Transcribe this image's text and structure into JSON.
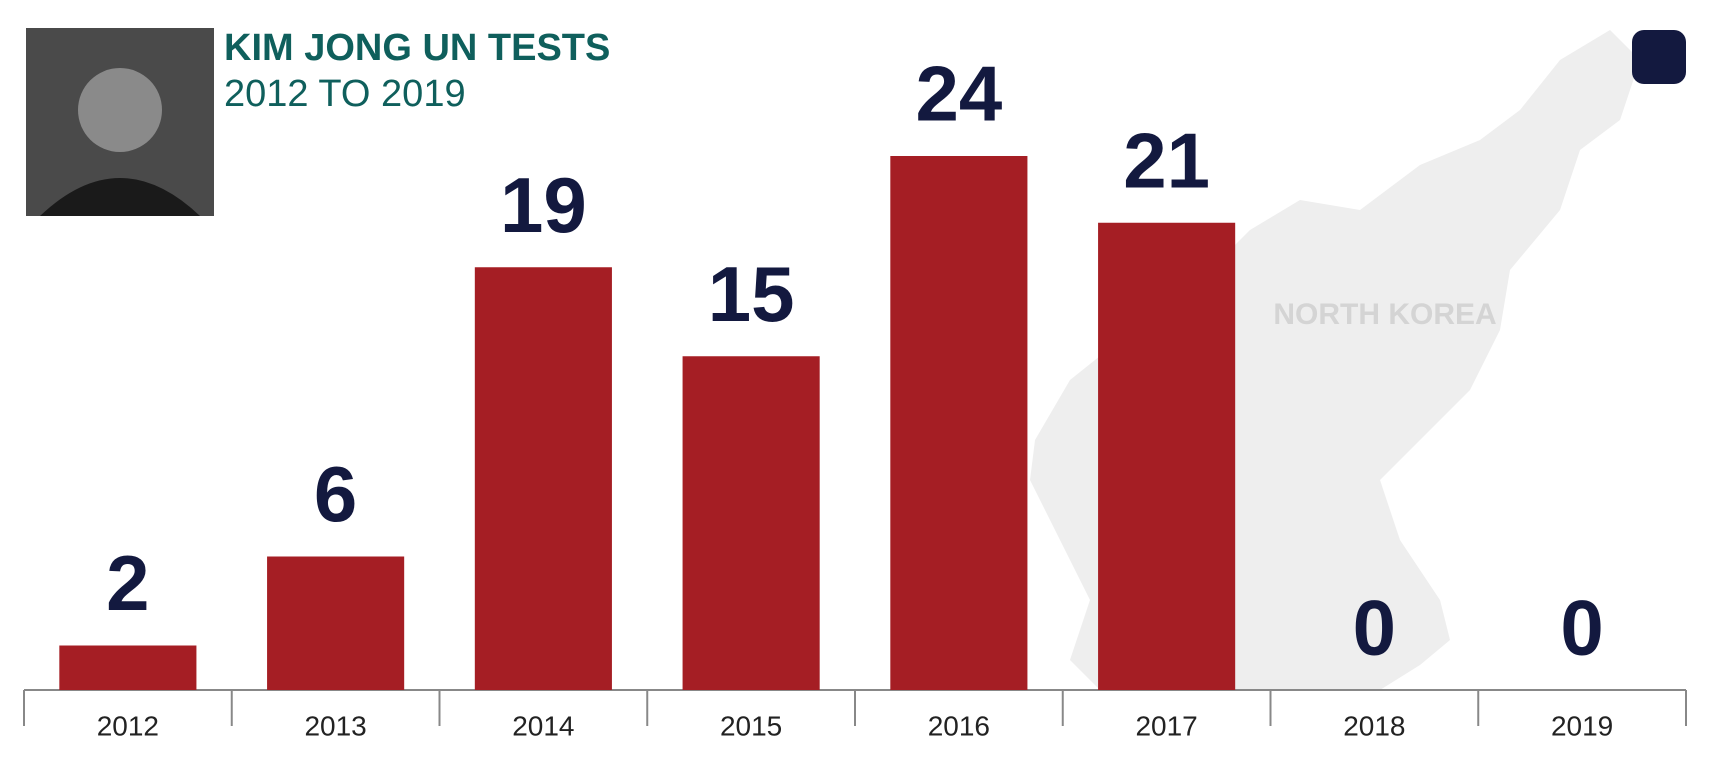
{
  "chart_data": {
    "type": "bar",
    "title": "KIM JONG UN TESTS",
    "subtitle": "2012 TO 2019",
    "annotation": "NORTH KOREA",
    "categories": [
      "2012",
      "2013",
      "2014",
      "2015",
      "2016",
      "2017",
      "2018",
      "2019"
    ],
    "values": [
      2,
      6,
      19,
      15,
      24,
      21,
      0,
      0
    ],
    "color": "#a51e24"
  }
}
